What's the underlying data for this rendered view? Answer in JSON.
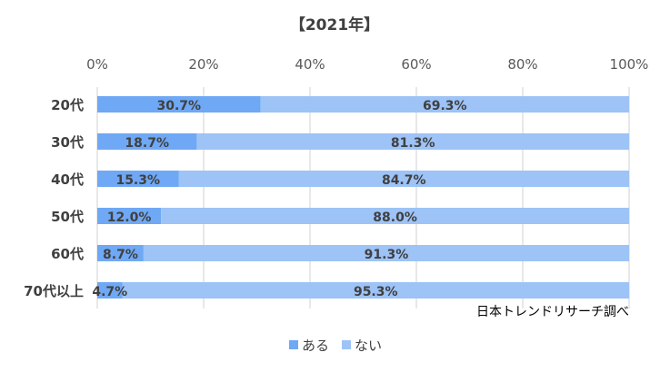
{
  "chart_data": {
    "type": "bar",
    "orientation": "horizontal",
    "stacked": "percent",
    "title": "【2021年】",
    "categories": [
      "20代",
      "30代",
      "40代",
      "50代",
      "60代",
      "70代以上"
    ],
    "series": [
      {
        "name": "ある",
        "values": [
          30.7,
          18.7,
          15.3,
          12.0,
          8.7,
          4.7
        ],
        "labels": [
          "30.7%",
          "18.7%",
          "15.3%",
          "12.0%",
          "8.7%",
          "4.7%"
        ],
        "color": "#6FA8F5"
      },
      {
        "name": "ない",
        "values": [
          69.3,
          81.3,
          84.7,
          88.0,
          91.3,
          95.3
        ],
        "labels": [
          "69.3%",
          "81.3%",
          "84.7%",
          "88.0%",
          "91.3%",
          "95.3%"
        ],
        "color": "#9DC3F7"
      }
    ],
    "xlim": [
      0,
      100
    ],
    "x_ticks": [
      0,
      20,
      40,
      60,
      80,
      100
    ],
    "x_tick_labels": [
      "0%",
      "20%",
      "40%",
      "60%",
      "80%",
      "100%"
    ],
    "x_axis_position": "top",
    "grid": "vertical",
    "legend": "bottom-center",
    "annotation": "日本トレンドリサーチ調べ"
  }
}
